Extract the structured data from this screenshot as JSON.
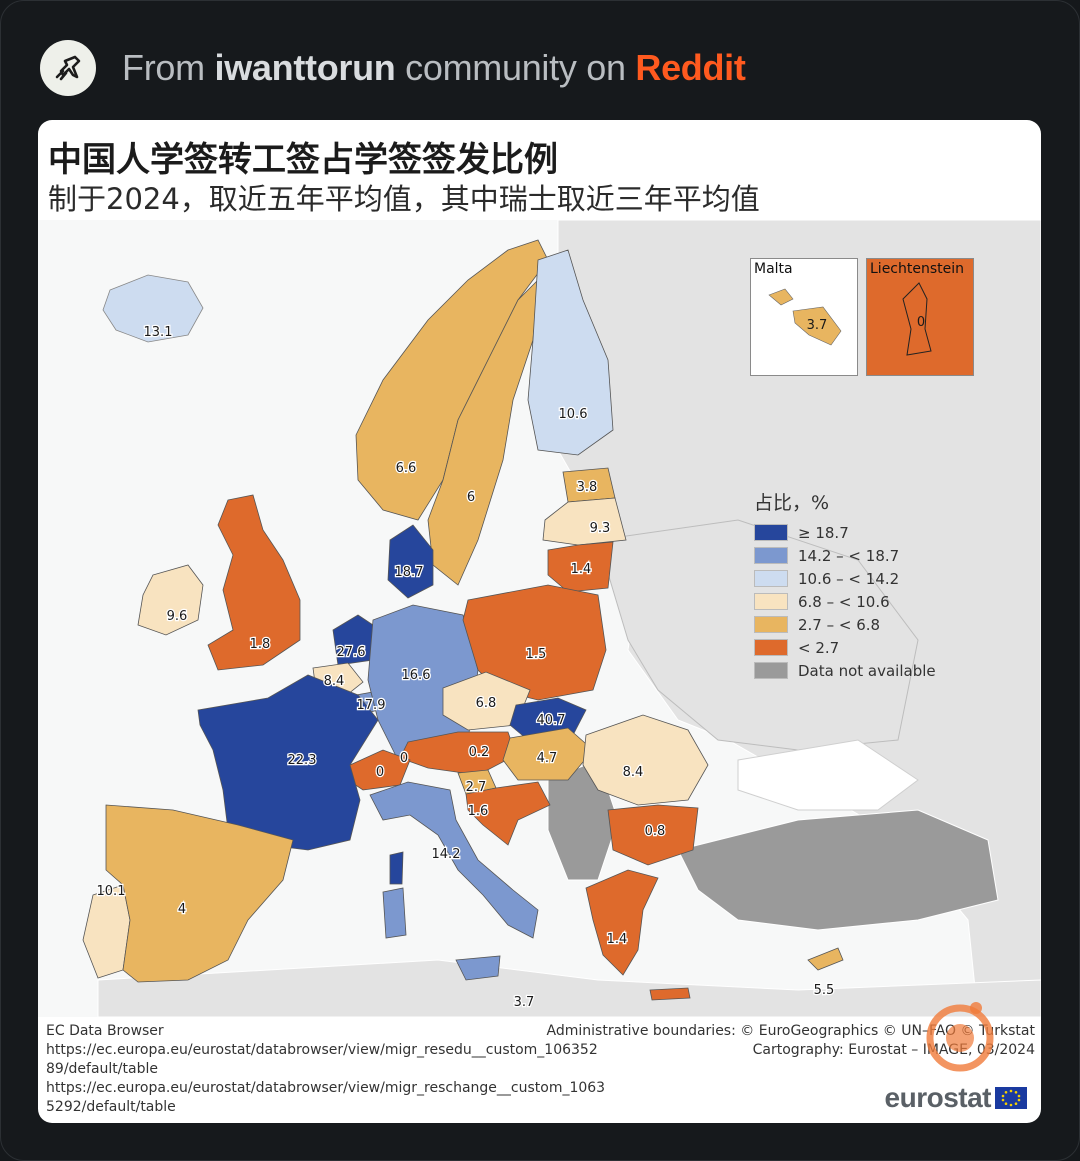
{
  "header": {
    "prefix": "From ",
    "community": "iwanttorun",
    "middle": " community on ",
    "platform": "Reddit",
    "icon": "runner-icon"
  },
  "map": {
    "title": "中国人学签转工签占学签签发比例",
    "subtitle": "制于2024，取近五年平均值，其中瑞士取近三年平均值",
    "colors": {
      "c1": "#26469c",
      "c2": "#7c98cf",
      "c3": "#cddcf0",
      "c4": "#f8e3c0",
      "c5": "#e8b560",
      "c6": "#de6a2c",
      "na": "#9a9a9a",
      "other": "#e3e3e3",
      "sea": "#f7f8f8"
    },
    "values": {
      "iceland": "13.1",
      "norway": "6.6",
      "sweden": "6",
      "finland": "10.6",
      "estonia": "3.8",
      "latvia": "9.3",
      "lithuania": "1.4",
      "denmark": "18.7",
      "ireland": "9.6",
      "uk": "1.8",
      "netherlands": "27.6",
      "belgium": "8.4",
      "luxembourg": "17.9",
      "germany": "16.6",
      "poland": "1.5",
      "czechia": "6.8",
      "slovakia": "40.7",
      "austria": "0.2",
      "hungary": "4.7",
      "switzerland": "0",
      "liechtenstein_main": "0",
      "france": "22.3",
      "slovenia": "2.7",
      "croatia": "1.6",
      "romania": "8.4",
      "bulgaria": "0.8",
      "greece": "1.4",
      "italy": "14.2",
      "spain": "4",
      "portugal": "10.1",
      "malta_main": "3.7",
      "cyprus": "5.5"
    },
    "insets": {
      "malta": {
        "title": "Malta",
        "value": "3.7"
      },
      "liechtenstein": {
        "title": "Liechtenstein",
        "value": "0"
      }
    },
    "legend": {
      "title": "占比，%",
      "items": [
        {
          "label": "≥ 18.7",
          "color": "#26469c"
        },
        {
          "label": "14.2 – < 18.7",
          "color": "#7c98cf"
        },
        {
          "label": "10.6 – < 14.2",
          "color": "#cddcf0"
        },
        {
          "label": "6.8 – < 10.6",
          "color": "#f8e3c0"
        },
        {
          "label": "2.7 – < 6.8",
          "color": "#e8b560"
        },
        {
          "label": "< 2.7",
          "color": "#de6a2c"
        },
        {
          "label": "Data not available",
          "color": "#9a9a9a"
        }
      ]
    },
    "footer": {
      "source_title": "EC Data Browser",
      "link1": "https://ec.europa.eu/eurostat/databrowser/view/migr_resedu__custom_10635289/default/table",
      "link2": "https://ec.europa.eu/eurostat/databrowser/view/migr_reschange__custom_10635292/default/table",
      "boundaries": "Administrative boundaries: © EuroGeographics © UN–FAO © Turkstat",
      "cartography": "Cartography: Eurostat – IMAGE, 03/2024",
      "brand": "eurostat"
    }
  }
}
